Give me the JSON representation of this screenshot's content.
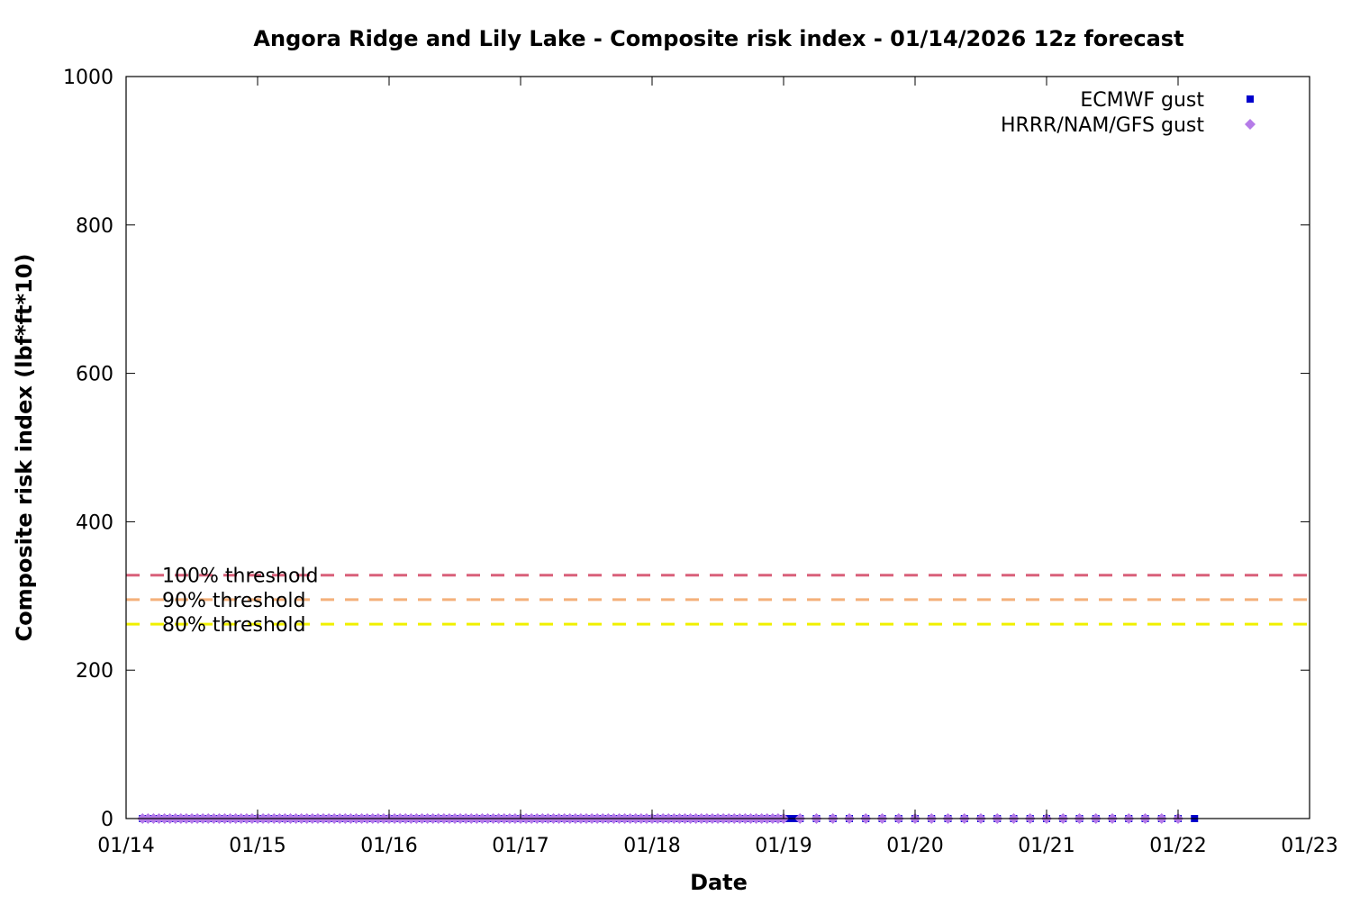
{
  "chart_data": {
    "type": "scatter",
    "title": "Angora Ridge and Lily Lake - Composite risk index - 01/14/2026 12z forecast",
    "xlabel": "Date",
    "ylabel": "Composite risk index (lbf*ft*10)",
    "x_ticks": [
      "01/14",
      "01/15",
      "01/16",
      "01/17",
      "01/18",
      "01/19",
      "01/20",
      "01/21",
      "01/22",
      "01/23"
    ],
    "y_ticks": [
      "0",
      "200",
      "400",
      "600",
      "800",
      "1000"
    ],
    "xlim": [
      "01/14 00z",
      "01/23 00z"
    ],
    "ylim": [
      0,
      1000
    ],
    "grid": false,
    "legend_position": "top-right",
    "thresholds": [
      {
        "label": "100% threshold",
        "value": 328,
        "color": "#d9607a"
      },
      {
        "label": "90% threshold",
        "value": 295,
        "color": "#f4b07a"
      },
      {
        "label": "80% threshold",
        "value": 262,
        "color": "#f0f000"
      }
    ],
    "series": [
      {
        "name": "ECMWF gust",
        "marker": "square",
        "color": "#0000cc",
        "x_range": [
          "01/14 03z",
          "01/22 03z"
        ],
        "interval": "hourly until 01/19 03z, then 3-hourly",
        "y": 0
      },
      {
        "name": "HRRR/NAM/GFS gust",
        "marker": "diamond",
        "color": "#b57be8",
        "x_range": [
          "01/14 03z",
          "01/22 00z"
        ],
        "interval": "hourly until 01/19 00z, then 3-hourly",
        "y": 0
      }
    ]
  }
}
